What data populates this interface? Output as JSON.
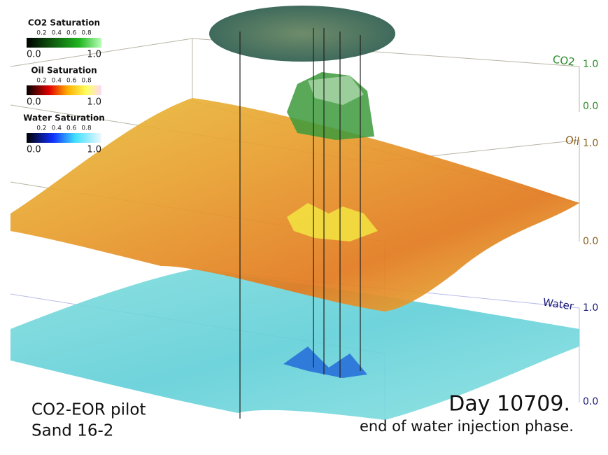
{
  "legends": [
    {
      "title": "CO2 Saturation",
      "ticks": [
        "0.2",
        "0.4",
        "0.6",
        "0.8"
      ],
      "min": "0.0",
      "max": "1.0"
    },
    {
      "title": "Oil Saturation",
      "ticks": [
        "0.2",
        "0.4",
        "0.6",
        "0.8"
      ],
      "min": "0.0",
      "max": "1.0"
    },
    {
      "title": "Water Saturation",
      "ticks": [
        "0.2",
        "0.4",
        "0.6",
        "0.8"
      ],
      "min": "0.0",
      "max": "1.0"
    }
  ],
  "axes": [
    {
      "label": "CO2",
      "top": "1.0",
      "bottom": "0.0"
    },
    {
      "label": "Oil",
      "top": "1.0",
      "bottom": "0.0"
    },
    {
      "label": "Water",
      "top": "1.0",
      "bottom": "0.0"
    }
  ],
  "caption": {
    "line1": "CO2-EOR pilot",
    "line2": "Sand 16-2",
    "day": "Day 10709.",
    "phase": "end of water injection phase."
  }
}
